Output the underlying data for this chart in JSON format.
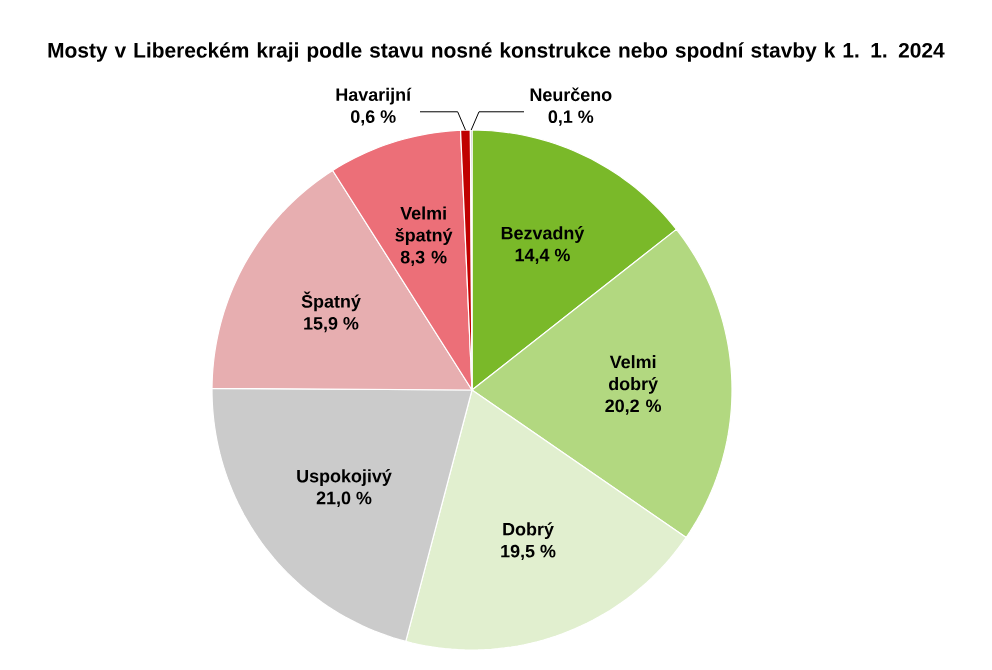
{
  "chart_data": {
    "type": "pie",
    "title": "Mosty v Libereckém kraji podle stavu nosné konstrukce nebo spodní stavby k 1. 1. 2024",
    "categories": [
      "Bezvadný",
      "Velmi dobrý",
      "Dobrý",
      "Uspokojivý",
      "Špatný",
      "Velmi špatný",
      "Havarijní",
      "Neurčeno"
    ],
    "values": [
      14.4,
      20.2,
      19.5,
      21.0,
      15.9,
      8.3,
      0.6,
      0.1
    ],
    "colors": [
      "#7ab929",
      "#b2d880",
      "#e1efcf",
      "#cbcbcb",
      "#e7aeb0",
      "#ec6f78",
      "#c00000",
      "#a6a6a6"
    ],
    "value_labels": [
      "14,4 %",
      "20,2 %",
      "19,5 %",
      "21,0 %",
      "15,9 %",
      "8,3 %",
      "0,6 %",
      "0,1 %"
    ]
  }
}
